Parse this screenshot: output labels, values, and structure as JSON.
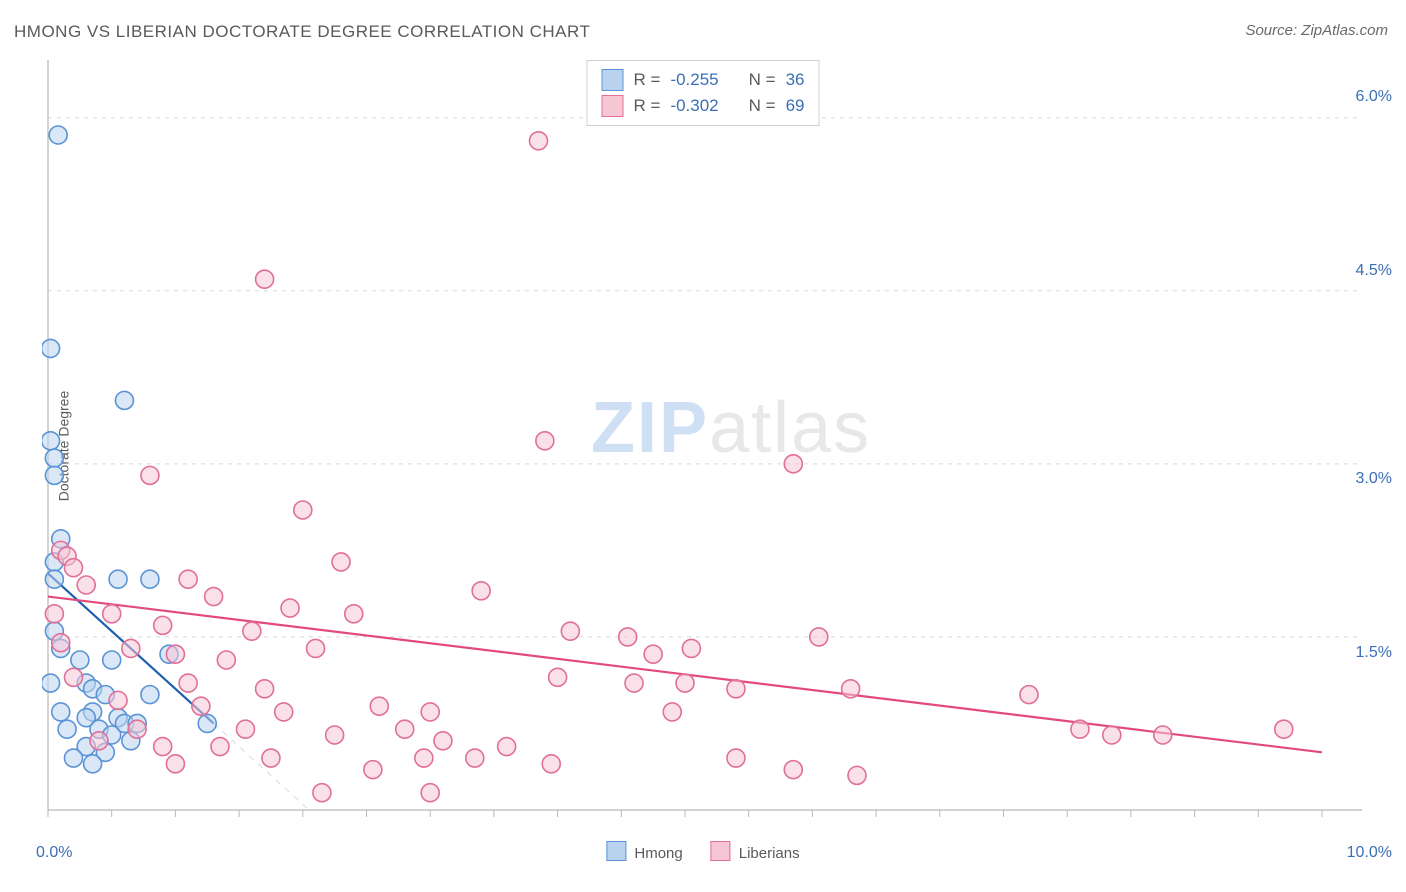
{
  "title": "HMONG VS LIBERIAN DOCTORATE DEGREE CORRELATION CHART",
  "source": "Source: ZipAtlas.com",
  "y_axis_label": "Doctorate Degree",
  "watermark": {
    "part1": "ZIP",
    "part2": "atlas"
  },
  "chart": {
    "type": "scatter",
    "background_color": "#ffffff",
    "grid_color": "#d8d8d8",
    "axis_color": "#b8b8b8",
    "tick_color": "#b8b8b8",
    "tick_label_color": "#3b6fb6",
    "xlim": [
      0.0,
      10.0
    ],
    "ylim": [
      0.0,
      6.5
    ],
    "x_tick_major": [
      0.0,
      10.0
    ],
    "x_tick_major_labels": [
      "0.0%",
      "10.0%"
    ],
    "x_tick_minor_step": 0.5,
    "y_tick_major": [
      1.5,
      3.0,
      4.5,
      6.0
    ],
    "y_tick_major_labels": [
      "1.5%",
      "3.0%",
      "4.5%",
      "6.0%"
    ],
    "marker_radius": 9,
    "marker_stroke_width": 1.6,
    "regression_line_width": 2.2,
    "series": [
      {
        "name": "Hmong",
        "fill_color": "#b9d3ef",
        "stroke_color": "#5a94d6",
        "fill_opacity": 0.55,
        "regression": {
          "x1": 0.0,
          "y1": 2.05,
          "x2": 1.3,
          "y2": 0.75,
          "x_ext": 2.05,
          "y_ext": 0.0,
          "color": "#1f5fb0",
          "dash_ext": "6,6"
        },
        "points": [
          [
            0.08,
            5.85
          ],
          [
            0.02,
            4.0
          ],
          [
            0.02,
            3.2
          ],
          [
            0.05,
            3.05
          ],
          [
            0.05,
            2.9
          ],
          [
            0.6,
            3.55
          ],
          [
            0.1,
            2.35
          ],
          [
            0.05,
            2.15
          ],
          [
            0.05,
            2.0
          ],
          [
            0.55,
            2.0
          ],
          [
            0.8,
            2.0
          ],
          [
            0.05,
            1.55
          ],
          [
            0.1,
            1.4
          ],
          [
            0.25,
            1.3
          ],
          [
            0.5,
            1.3
          ],
          [
            0.95,
            1.35
          ],
          [
            0.02,
            1.1
          ],
          [
            0.3,
            1.1
          ],
          [
            0.35,
            1.05
          ],
          [
            0.45,
            1.0
          ],
          [
            0.8,
            1.0
          ],
          [
            0.1,
            0.85
          ],
          [
            0.35,
            0.85
          ],
          [
            0.3,
            0.8
          ],
          [
            0.55,
            0.8
          ],
          [
            0.6,
            0.75
          ],
          [
            0.7,
            0.75
          ],
          [
            0.15,
            0.7
          ],
          [
            0.4,
            0.7
          ],
          [
            0.5,
            0.65
          ],
          [
            0.65,
            0.6
          ],
          [
            0.3,
            0.55
          ],
          [
            0.45,
            0.5
          ],
          [
            0.2,
            0.45
          ],
          [
            0.35,
            0.4
          ],
          [
            1.25,
            0.75
          ]
        ]
      },
      {
        "name": "Liberians",
        "fill_color": "#f6c6d5",
        "stroke_color": "#e16f97",
        "fill_opacity": 0.55,
        "regression": {
          "x1": 0.0,
          "y1": 1.85,
          "x2": 10.0,
          "y2": 0.5,
          "color": "#e34a7b"
        },
        "points": [
          [
            3.85,
            5.8
          ],
          [
            1.7,
            4.6
          ],
          [
            3.9,
            3.2
          ],
          [
            5.85,
            3.0
          ],
          [
            0.8,
            2.9
          ],
          [
            0.1,
            2.25
          ],
          [
            0.15,
            2.2
          ],
          [
            0.2,
            2.1
          ],
          [
            1.1,
            2.0
          ],
          [
            2.0,
            2.6
          ],
          [
            2.3,
            2.15
          ],
          [
            0.3,
            1.95
          ],
          [
            1.3,
            1.85
          ],
          [
            1.9,
            1.75
          ],
          [
            2.4,
            1.7
          ],
          [
            3.4,
            1.9
          ],
          [
            0.05,
            1.7
          ],
          [
            0.5,
            1.7
          ],
          [
            0.9,
            1.6
          ],
          [
            1.6,
            1.55
          ],
          [
            4.1,
            1.55
          ],
          [
            4.55,
            1.5
          ],
          [
            0.1,
            1.45
          ],
          [
            0.65,
            1.4
          ],
          [
            1.0,
            1.35
          ],
          [
            1.4,
            1.3
          ],
          [
            2.1,
            1.4
          ],
          [
            4.75,
            1.35
          ],
          [
            5.05,
            1.4
          ],
          [
            6.05,
            1.5
          ],
          [
            0.2,
            1.15
          ],
          [
            1.1,
            1.1
          ],
          [
            1.7,
            1.05
          ],
          [
            4.0,
            1.15
          ],
          [
            4.6,
            1.1
          ],
          [
            5.0,
            1.1
          ],
          [
            5.4,
            1.05
          ],
          [
            6.3,
            1.05
          ],
          [
            0.55,
            0.95
          ],
          [
            1.2,
            0.9
          ],
          [
            1.85,
            0.85
          ],
          [
            2.6,
            0.9
          ],
          [
            3.0,
            0.85
          ],
          [
            4.9,
            0.85
          ],
          [
            7.7,
            1.0
          ],
          [
            8.1,
            0.7
          ],
          [
            1.55,
            0.7
          ],
          [
            2.25,
            0.65
          ],
          [
            2.8,
            0.7
          ],
          [
            3.1,
            0.6
          ],
          [
            3.6,
            0.55
          ],
          [
            5.4,
            0.45
          ],
          [
            0.9,
            0.55
          ],
          [
            1.35,
            0.55
          ],
          [
            2.95,
            0.45
          ],
          [
            3.35,
            0.45
          ],
          [
            3.95,
            0.4
          ],
          [
            5.85,
            0.35
          ],
          [
            6.35,
            0.3
          ],
          [
            8.35,
            0.65
          ],
          [
            8.75,
            0.65
          ],
          [
            9.7,
            0.7
          ],
          [
            2.55,
            0.35
          ],
          [
            1.0,
            0.4
          ],
          [
            0.4,
            0.6
          ],
          [
            0.7,
            0.7
          ],
          [
            1.75,
            0.45
          ],
          [
            2.15,
            0.15
          ],
          [
            3.0,
            0.15
          ]
        ]
      }
    ]
  },
  "stats": [
    {
      "swatch_fill": "#b9d3ef",
      "swatch_stroke": "#5a94d6",
      "r_label": "R = ",
      "r_value": "-0.255",
      "n_label": "N = ",
      "n_value": "36"
    },
    {
      "swatch_fill": "#f6c6d5",
      "swatch_stroke": "#e16f97",
      "r_label": "R = ",
      "r_value": "-0.302",
      "n_label": "N = ",
      "n_value": "69"
    }
  ],
  "legend_bottom": [
    {
      "label": "Hmong",
      "fill": "#b9d3ef",
      "stroke": "#5a94d6"
    },
    {
      "label": "Liberians",
      "fill": "#f6c6d5",
      "stroke": "#e16f97"
    }
  ]
}
